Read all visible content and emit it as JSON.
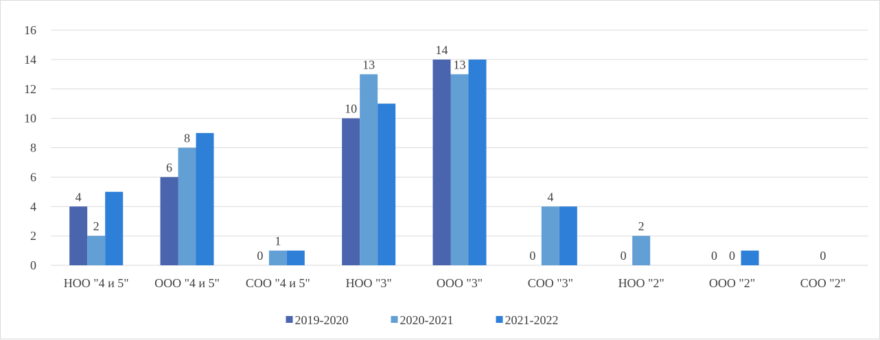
{
  "chart_data": {
    "type": "bar",
    "categories": [
      "НОО \"4 и 5\"",
      "ООО \"4 и 5\"",
      "СОО \"4 и 5\"",
      "НОО \"3\"",
      "ООО \"3\"",
      "СОО \"3\"",
      "НОО \"2\"",
      "ООО \"2\"",
      "СОО \"2\""
    ],
    "series": [
      {
        "name": "2019-2020",
        "color": "#4a64ae",
        "values": [
          4,
          6,
          0,
          10,
          14,
          0,
          0,
          0,
          0
        ]
      },
      {
        "name": "2020-2021",
        "color": "#629fd5",
        "values": [
          2,
          8,
          1,
          13,
          13,
          4,
          2,
          0,
          0
        ]
      },
      {
        "name": "2021-2022",
        "color": "#2e7fd8",
        "values": [
          5,
          9,
          1,
          11,
          14,
          4,
          0,
          1,
          0
        ]
      }
    ],
    "data_labels": [
      {
        "category_index": 0,
        "series_index": 0,
        "text": "4"
      },
      {
        "category_index": 0,
        "series_index": 1,
        "text": "2"
      },
      {
        "category_index": 1,
        "series_index": 0,
        "text": "6"
      },
      {
        "category_index": 1,
        "series_index": 1,
        "text": "8"
      },
      {
        "category_index": 2,
        "series_index": 0,
        "text": "0"
      },
      {
        "category_index": 2,
        "series_index": 1,
        "text": "1"
      },
      {
        "category_index": 3,
        "series_index": 0,
        "text": "10"
      },
      {
        "category_index": 3,
        "series_index": 1,
        "text": "13"
      },
      {
        "category_index": 4,
        "series_index": 0,
        "text": "14"
      },
      {
        "category_index": 4,
        "series_index": 1,
        "text": "13"
      },
      {
        "category_index": 5,
        "series_index": 0,
        "text": "0"
      },
      {
        "category_index": 5,
        "series_index": 1,
        "text": "4"
      },
      {
        "category_index": 6,
        "series_index": 0,
        "text": "0"
      },
      {
        "category_index": 6,
        "series_index": 1,
        "text": "2"
      },
      {
        "category_index": 7,
        "series_index": 0,
        "text": "0"
      },
      {
        "category_index": 7,
        "series_index": 1,
        "text": "0"
      },
      {
        "category_index": 8,
        "series_index": 1,
        "text": "0"
      }
    ],
    "y_ticks": [
      "0",
      "2",
      "4",
      "6",
      "8",
      "10",
      "12",
      "14",
      "16"
    ],
    "ylim": [
      0,
      16
    ],
    "title": "",
    "xlabel": "",
    "ylabel": "",
    "grid": true,
    "legend_position": "bottom"
  }
}
